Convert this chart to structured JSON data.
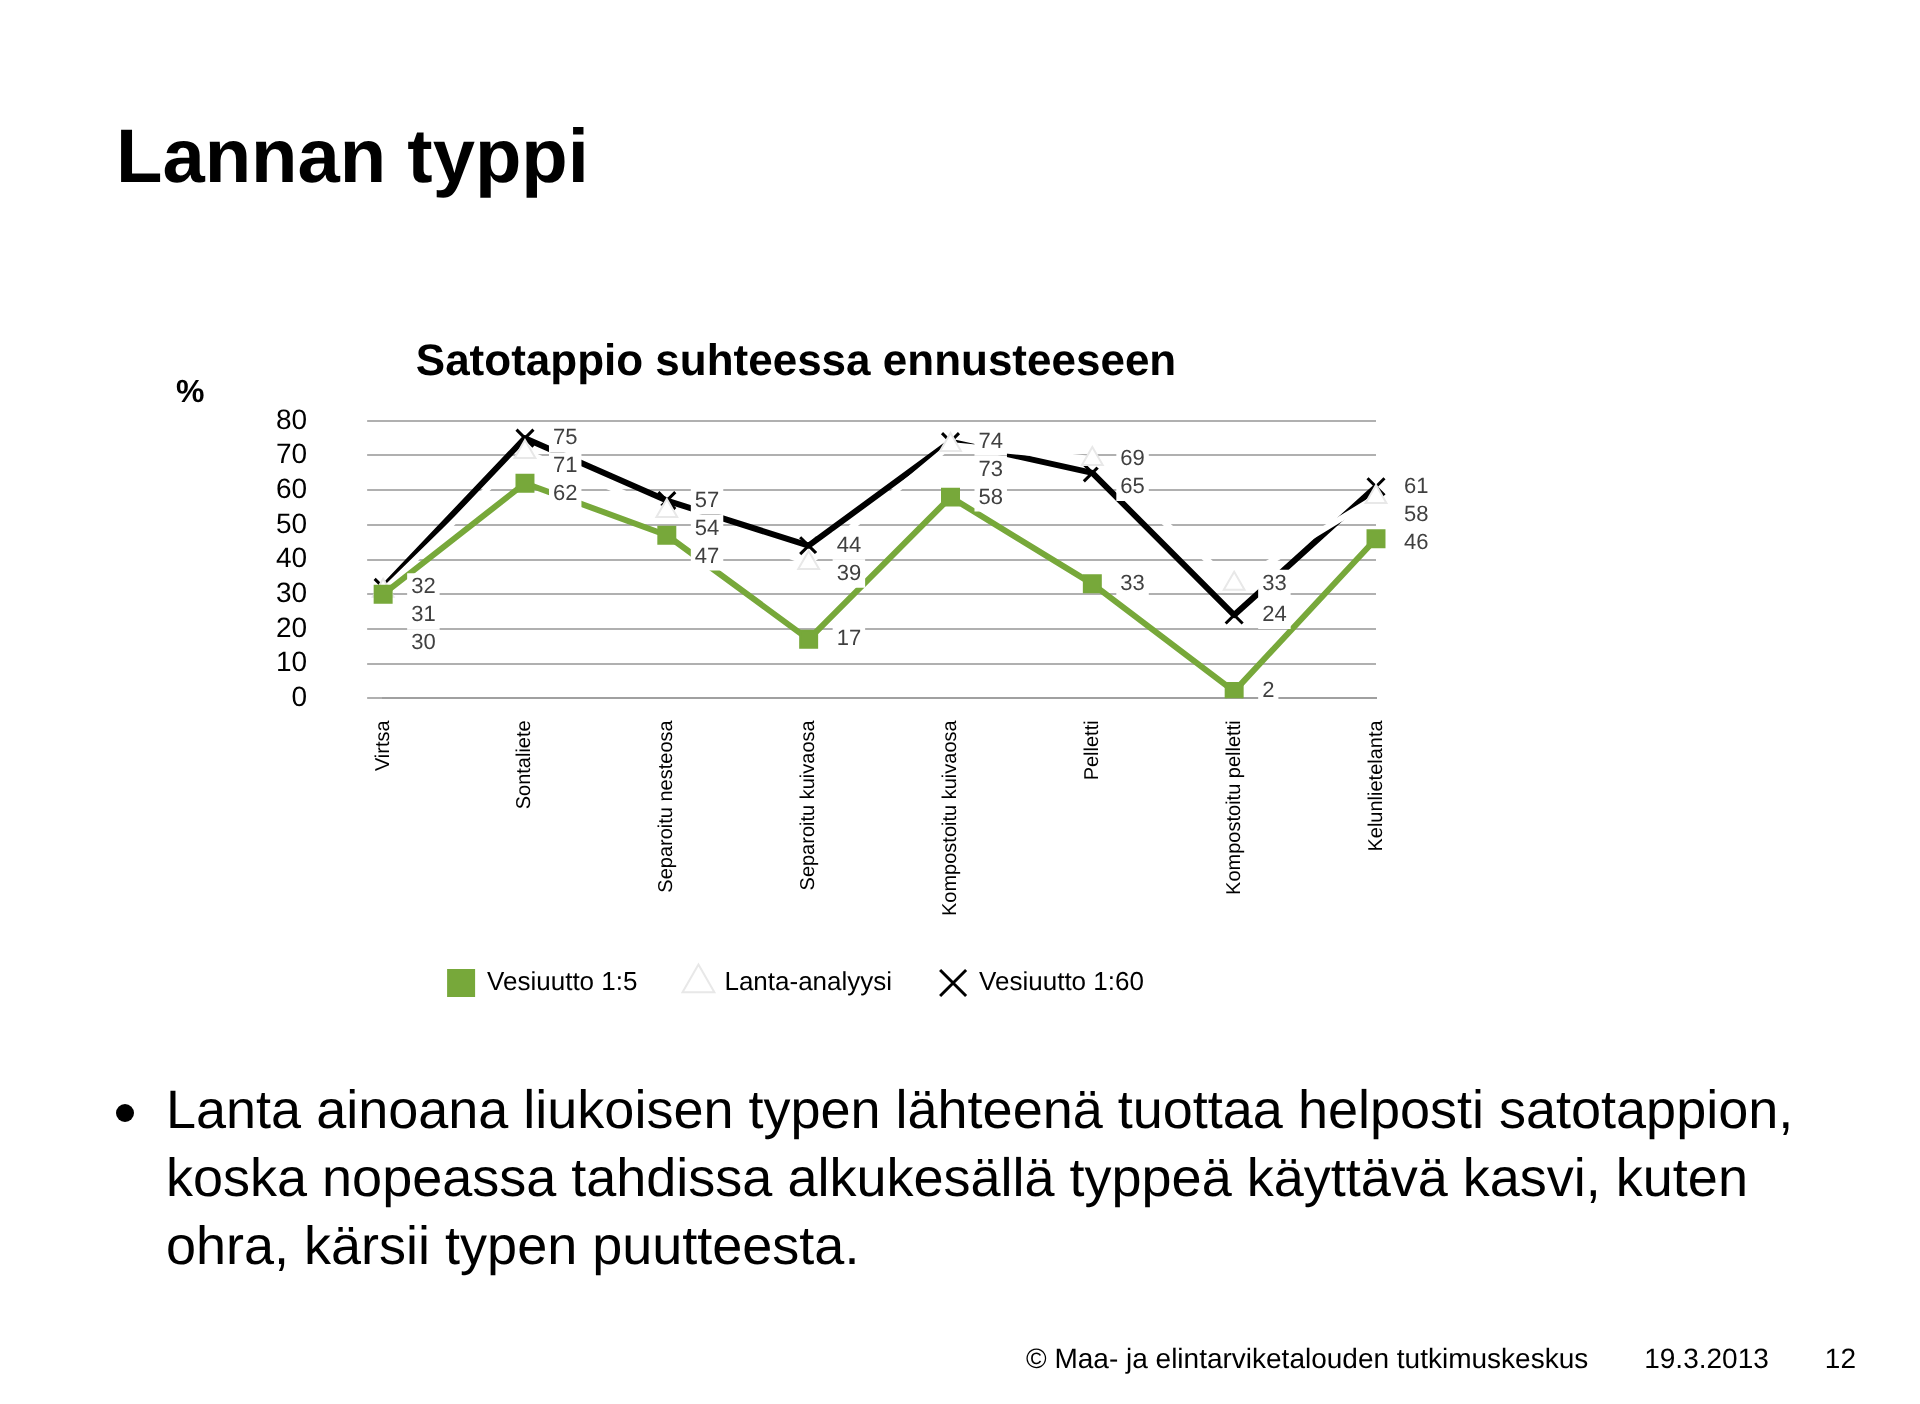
{
  "chart_data": {
    "type": "line",
    "title": "Lannan typpi",
    "subtitle": "Satotappio suhteessa ennusteeseen",
    "ylabel": "%",
    "categories": [
      "Virtsa",
      "Sontaliete",
      "Separoitu nesteosa",
      "Separoitu kuivaosa",
      "Kompostoitu kuivaosa",
      "Pelletti",
      "Kompostoitu pelletti",
      "Kelunlietelanta"
    ],
    "series": [
      {
        "name": "Vesiuutto 1:5",
        "color": "#77a83a",
        "marker": "square",
        "values": [
          30,
          62,
          47,
          17,
          58,
          33,
          2,
          46
        ]
      },
      {
        "name": "Lanta-analyysi",
        "color": "#ffffff",
        "marker": "triangle",
        "values": [
          31,
          71,
          54,
          39,
          73,
          69,
          33,
          58
        ]
      },
      {
        "name": "Vesiuutto 1:60",
        "color": "#000000",
        "marker": "cross",
        "values": [
          32,
          75,
          57,
          44,
          74,
          65,
          24,
          61
        ]
      }
    ],
    "ylim": [
      0,
      80
    ],
    "yticks": [
      0,
      10,
      20,
      30,
      40,
      50,
      60,
      70,
      80
    ],
    "grid": "y",
    "legend": "bottom",
    "line_style": "solid",
    "data_labels": true,
    "annotations": [
      "Lanta ainoana liukoisen typen lähteenä tuottaa helposti satotappion, koska nopeassa tahdissa alkukesällä typpeä käyttävä kasvi, kuten ohra, kärsii typen puutteesta.",
      "© Maa- ja elintarviketalouden tutkimuskeskus",
      "19.3.2013",
      "12"
    ]
  }
}
